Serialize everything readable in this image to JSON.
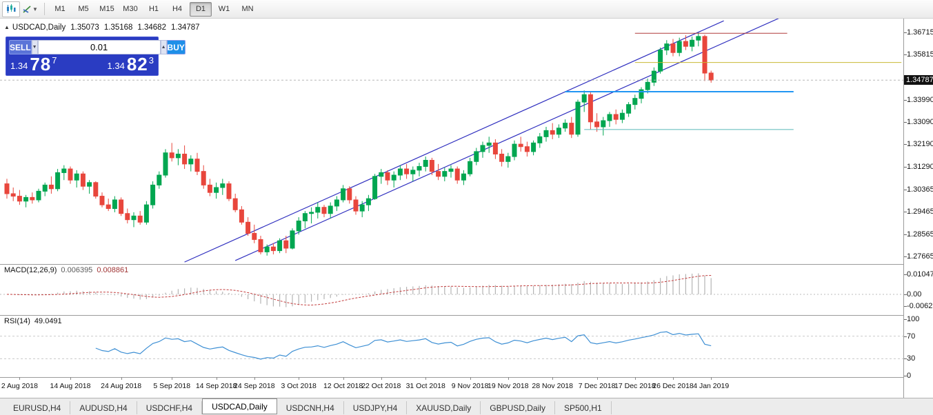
{
  "toolbar": {
    "timeframes": [
      "M1",
      "M5",
      "M15",
      "M30",
      "H1",
      "H4",
      "D1",
      "W1",
      "MN"
    ],
    "active_timeframe": "D1",
    "icons": [
      "chart-window-icon",
      "line-tools-icon",
      "dropdown-caret-icon"
    ]
  },
  "chart": {
    "title": "USDCAD,Daily",
    "ohlc": {
      "open": "1.35073",
      "high": "1.35168",
      "low": "1.34682",
      "close": "1.34787"
    },
    "current_price": "1.34787",
    "price_axis": [
      "1.36715",
      "1.35815",
      "1.33990",
      "1.33090",
      "1.32190",
      "1.31290",
      "1.30365",
      "1.29465",
      "1.28565",
      "1.27665"
    ],
    "trade_panel": {
      "sell_label": "SELL",
      "buy_label": "BUY",
      "lot": "0.01",
      "bid": {
        "prefix": "1.34",
        "digits": "78",
        "pip": "7"
      },
      "ask": {
        "prefix": "1.34",
        "digits": "82",
        "pip": "3"
      }
    }
  },
  "macd": {
    "name": "MACD(12,26,9)",
    "main": "0.006395",
    "signal": "0.008861",
    "axis": [
      "0.010474",
      "0.00",
      "-0.006218"
    ]
  },
  "rsi": {
    "name": "RSI(14)",
    "value": "49.0491",
    "axis": [
      "100",
      "70",
      "30",
      "0"
    ],
    "levels": [
      70,
      30
    ]
  },
  "tabs": {
    "items": [
      "EURUSD,H4",
      "AUDUSD,H4",
      "USDCHF,H4",
      "USDCAD,Daily",
      "USDCNH,H4",
      "USDJPY,H4",
      "XAUUSD,Daily",
      "GBPUSD,Daily",
      "SP500,H1"
    ],
    "active": "USDCAD,Daily"
  },
  "chart_data": {
    "type": "candlestick",
    "symbol": "USDCAD",
    "timeframe": "Daily",
    "price_range": {
      "top": 1.3727,
      "bottom": 1.2736
    },
    "bid": 1.34787,
    "colors": {
      "up": "#00A650",
      "down": "#E8463C",
      "channel": "#2F2FBF",
      "macd_hist": "#B4B4B4",
      "macd_signal": "#C23B3B",
      "rsi_line": "#3D8FD4"
    },
    "candles": [
      [
        1.306,
        1.308,
        1.3,
        1.302
      ],
      [
        1.302,
        1.3045,
        1.299,
        1.301
      ],
      [
        1.301,
        1.3035,
        1.2975,
        1.299
      ],
      [
        1.299,
        1.3015,
        1.2965,
        1.3005
      ],
      [
        1.3005,
        1.3025,
        1.298,
        1.2995
      ],
      [
        1.2995,
        1.304,
        1.2985,
        1.303
      ],
      [
        1.303,
        1.3065,
        1.301,
        1.3055
      ],
      [
        1.3055,
        1.309,
        1.302,
        1.304
      ],
      [
        1.304,
        1.312,
        1.303,
        1.3105
      ],
      [
        1.3105,
        1.3135,
        1.3075,
        1.312
      ],
      [
        1.312,
        1.313,
        1.306,
        1.3075
      ],
      [
        1.3075,
        1.3115,
        1.3045,
        1.31
      ],
      [
        1.31,
        1.311,
        1.3035,
        1.305
      ],
      [
        1.305,
        1.3075,
        1.302,
        1.3065
      ],
      [
        1.3065,
        1.307,
        1.3,
        1.301
      ],
      [
        1.301,
        1.3025,
        1.2965,
        1.2975
      ],
      [
        1.2975,
        1.3,
        1.295,
        1.296
      ],
      [
        1.296,
        1.301,
        1.2945,
        1.2995
      ],
      [
        1.2995,
        1.3005,
        1.293,
        1.294
      ],
      [
        1.294,
        1.296,
        1.29,
        1.2915
      ],
      [
        1.2915,
        1.2945,
        1.2885,
        1.293
      ],
      [
        1.293,
        1.295,
        1.2895,
        1.2905
      ],
      [
        1.2905,
        1.299,
        1.2895,
        1.2975
      ],
      [
        1.2975,
        1.307,
        1.296,
        1.3055
      ],
      [
        1.3055,
        1.311,
        1.304,
        1.3095
      ],
      [
        1.3095,
        1.32,
        1.3085,
        1.3185
      ],
      [
        1.3185,
        1.3225,
        1.315,
        1.3165
      ],
      [
        1.3165,
        1.32,
        1.3135,
        1.318
      ],
      [
        1.318,
        1.3215,
        1.312,
        1.314
      ],
      [
        1.314,
        1.3175,
        1.311,
        1.316
      ],
      [
        1.316,
        1.3185,
        1.3095,
        1.311
      ],
      [
        1.311,
        1.3135,
        1.304,
        1.3055
      ],
      [
        1.3055,
        1.308,
        1.301,
        1.3025
      ],
      [
        1.3025,
        1.3065,
        1.3,
        1.3045
      ],
      [
        1.3045,
        1.308,
        1.3015,
        1.306
      ],
      [
        1.306,
        1.307,
        1.299,
        1.3
      ],
      [
        1.3,
        1.302,
        1.2945,
        1.2955
      ],
      [
        1.2955,
        1.297,
        1.2895,
        1.2905
      ],
      [
        1.2905,
        1.2925,
        1.285,
        1.286
      ],
      [
        1.286,
        1.2895,
        1.282,
        1.2835
      ],
      [
        1.2835,
        1.285,
        1.2775,
        1.2785
      ],
      [
        1.2785,
        1.2815,
        1.277,
        1.2805
      ],
      [
        1.2805,
        1.282,
        1.2775,
        1.279
      ],
      [
        1.279,
        1.284,
        1.278,
        1.283
      ],
      [
        1.283,
        1.285,
        1.278,
        1.28
      ],
      [
        1.28,
        1.288,
        1.2795,
        1.287
      ],
      [
        1.287,
        1.2925,
        1.2855,
        1.291
      ],
      [
        1.291,
        1.295,
        1.288,
        1.294
      ],
      [
        1.294,
        1.2965,
        1.29,
        1.2945
      ],
      [
        1.2945,
        1.2985,
        1.292,
        1.2965
      ],
      [
        1.2965,
        1.2975,
        1.2925,
        1.294
      ],
      [
        1.294,
        1.2985,
        1.292,
        1.297
      ],
      [
        1.297,
        1.301,
        1.295,
        1.2995
      ],
      [
        1.2995,
        1.3055,
        1.2985,
        1.304
      ],
      [
        1.304,
        1.305,
        1.298,
        1.2995
      ],
      [
        1.2995,
        1.301,
        1.2935,
        1.295
      ],
      [
        1.295,
        1.299,
        1.2925,
        1.2975
      ],
      [
        1.2975,
        1.3015,
        1.295,
        1.3
      ],
      [
        1.3,
        1.31,
        1.2995,
        1.309
      ],
      [
        1.309,
        1.312,
        1.306,
        1.3105
      ],
      [
        1.3105,
        1.3115,
        1.3055,
        1.3075
      ],
      [
        1.3075,
        1.311,
        1.3045,
        1.3095
      ],
      [
        1.3095,
        1.3135,
        1.3075,
        1.312
      ],
      [
        1.312,
        1.314,
        1.308,
        1.31
      ],
      [
        1.31,
        1.313,
        1.307,
        1.3115
      ],
      [
        1.3115,
        1.3145,
        1.309,
        1.313
      ],
      [
        1.313,
        1.317,
        1.311,
        1.3155
      ],
      [
        1.3155,
        1.3165,
        1.3095,
        1.311
      ],
      [
        1.311,
        1.314,
        1.3075,
        1.309
      ],
      [
        1.309,
        1.3125,
        1.307,
        1.311
      ],
      [
        1.311,
        1.3135,
        1.3085,
        1.312
      ],
      [
        1.312,
        1.313,
        1.306,
        1.3075
      ],
      [
        1.3075,
        1.3115,
        1.3055,
        1.31
      ],
      [
        1.31,
        1.3165,
        1.309,
        1.315
      ],
      [
        1.315,
        1.3205,
        1.3135,
        1.319
      ],
      [
        1.319,
        1.323,
        1.3165,
        1.3215
      ],
      [
        1.3215,
        1.325,
        1.3185,
        1.3225
      ],
      [
        1.3225,
        1.324,
        1.316,
        1.318
      ],
      [
        1.318,
        1.32,
        1.313,
        1.315
      ],
      [
        1.315,
        1.3185,
        1.3125,
        1.317
      ],
      [
        1.317,
        1.3235,
        1.3155,
        1.322
      ],
      [
        1.322,
        1.325,
        1.319,
        1.321
      ],
      [
        1.321,
        1.323,
        1.317,
        1.319
      ],
      [
        1.319,
        1.3235,
        1.3175,
        1.3225
      ],
      [
        1.3225,
        1.3265,
        1.3205,
        1.325
      ],
      [
        1.325,
        1.329,
        1.323,
        1.3275
      ],
      [
        1.3275,
        1.3305,
        1.324,
        1.326
      ],
      [
        1.326,
        1.33,
        1.3245,
        1.3285
      ],
      [
        1.3285,
        1.332,
        1.327,
        1.3305
      ],
      [
        1.3305,
        1.333,
        1.3245,
        1.326
      ],
      [
        1.326,
        1.34,
        1.325,
        1.339
      ],
      [
        1.339,
        1.3437,
        1.335,
        1.342
      ],
      [
        1.342,
        1.343,
        1.328,
        1.331
      ],
      [
        1.331,
        1.3345,
        1.327,
        1.329
      ],
      [
        1.329,
        1.333,
        1.3255,
        1.3315
      ],
      [
        1.3315,
        1.335,
        1.329,
        1.334
      ],
      [
        1.334,
        1.336,
        1.33,
        1.332
      ],
      [
        1.332,
        1.336,
        1.3305,
        1.3345
      ],
      [
        1.3345,
        1.339,
        1.333,
        1.338
      ],
      [
        1.338,
        1.342,
        1.336,
        1.3405
      ],
      [
        1.3405,
        1.345,
        1.3385,
        1.344
      ],
      [
        1.344,
        1.3485,
        1.3425,
        1.347
      ],
      [
        1.347,
        1.353,
        1.3455,
        1.3515
      ],
      [
        1.3515,
        1.361,
        1.3505,
        1.36
      ],
      [
        1.36,
        1.364,
        1.358,
        1.3625
      ],
      [
        1.3625,
        1.3645,
        1.3575,
        1.359
      ],
      [
        1.359,
        1.365,
        1.3575,
        1.3635
      ],
      [
        1.3635,
        1.366,
        1.36,
        1.3615
      ],
      [
        1.3615,
        1.3655,
        1.3595,
        1.364
      ],
      [
        1.364,
        1.367,
        1.3615,
        1.3655
      ],
      [
        1.3655,
        1.3662,
        1.3475,
        1.3507
      ],
      [
        1.35073,
        1.35168,
        1.34682,
        1.34787
      ]
    ],
    "x_ticks": [
      {
        "i": 2,
        "label": "2 Aug 2018"
      },
      {
        "i": 10,
        "label": "14 Aug 2018"
      },
      {
        "i": 18,
        "label": "24 Aug 2018"
      },
      {
        "i": 26,
        "label": "5 Sep 2018"
      },
      {
        "i": 33,
        "label": "14 Sep 2018"
      },
      {
        "i": 39,
        "label": "24 Sep 2018"
      },
      {
        "i": 46,
        "label": "3 Oct 2018"
      },
      {
        "i": 53,
        "label": "12 Oct 2018"
      },
      {
        "i": 59,
        "label": "22 Oct 2018"
      },
      {
        "i": 66,
        "label": "31 Oct 2018"
      },
      {
        "i": 73,
        "label": "9 Nov 2018"
      },
      {
        "i": 79,
        "label": "19 Nov 2018"
      },
      {
        "i": 86,
        "label": "28 Nov 2018"
      },
      {
        "i": 93,
        "label": "7 Dec 2018"
      },
      {
        "i": 99,
        "label": "17 Dec 2018"
      },
      {
        "i": 105,
        "label": "26 Dec 2018"
      },
      {
        "i": 111,
        "label": "4 Jan 2019"
      }
    ],
    "trendlines": [
      {
        "i1": 36,
        "p1": 1.275,
        "i2": 122,
        "p2": 1.3732
      },
      {
        "i1": 28,
        "p1": 1.2744,
        "i2": 113,
        "p2": 1.3718
      }
    ],
    "hlines": [
      {
        "p": 1.3668,
        "i1": 99,
        "i2": 123,
        "color": "#B03A3A",
        "w": 1
      },
      {
        "p": 1.355,
        "i1": 99,
        "i2": 141,
        "color": "#C8B832",
        "w": 1
      },
      {
        "p": 1.3432,
        "i1": 88,
        "i2": 124,
        "color": "#2196F3",
        "w": 2
      },
      {
        "p": 1.3279,
        "i1": 91,
        "i2": 124,
        "color": "#58B8B8",
        "w": 1
      }
    ],
    "macd_params": [
      12,
      26,
      9
    ],
    "rsi_period": 14
  }
}
